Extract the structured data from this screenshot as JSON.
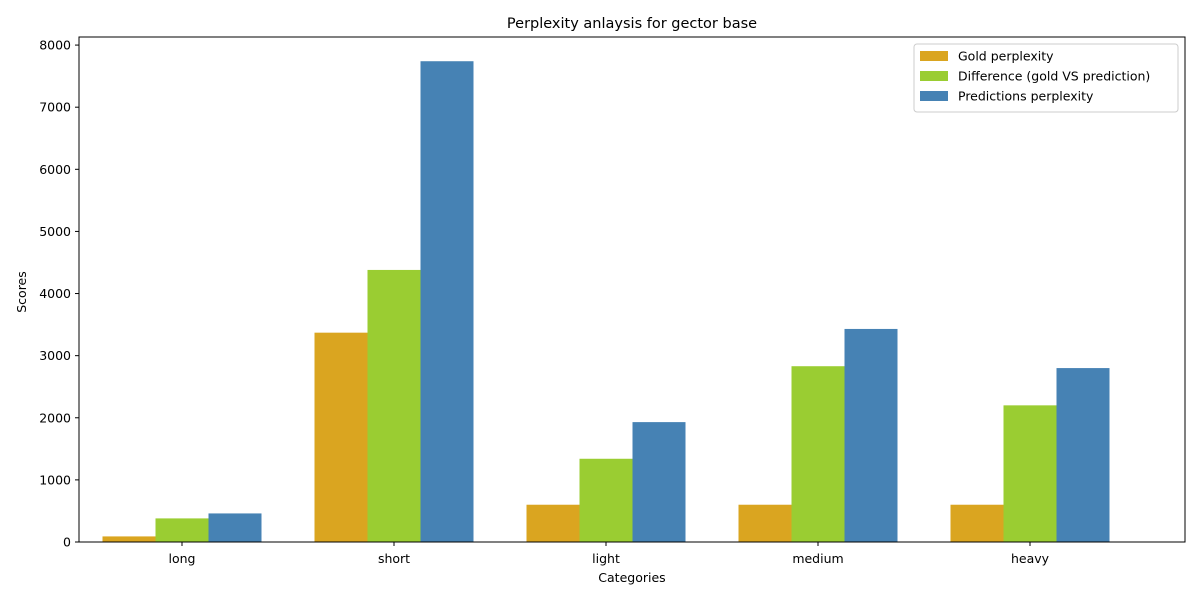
{
  "chart_data": {
    "type": "bar",
    "title": "Perplexity anlaysis for gector base",
    "xlabel": "Categories",
    "ylabel": "Scores",
    "categories": [
      "long",
      "short",
      "light",
      "medium",
      "heavy"
    ],
    "ylim": [
      0,
      8130
    ],
    "yticks": [
      0,
      1000,
      2000,
      3000,
      4000,
      5000,
      6000,
      7000,
      8000
    ],
    "grid": false,
    "legend_position": "top-right",
    "series": [
      {
        "name": "Gold perplexity",
        "color": "#DAA520",
        "values": [
          90,
          3370,
          600,
          600,
          600
        ]
      },
      {
        "name": "Difference (gold VS prediction)",
        "color": "#9ACD32",
        "values": [
          380,
          4380,
          1340,
          2830,
          2200
        ]
      },
      {
        "name": "Predictions perplexity",
        "color": "#4682B4",
        "values": [
          460,
          7740,
          1930,
          3430,
          2800
        ]
      }
    ]
  }
}
